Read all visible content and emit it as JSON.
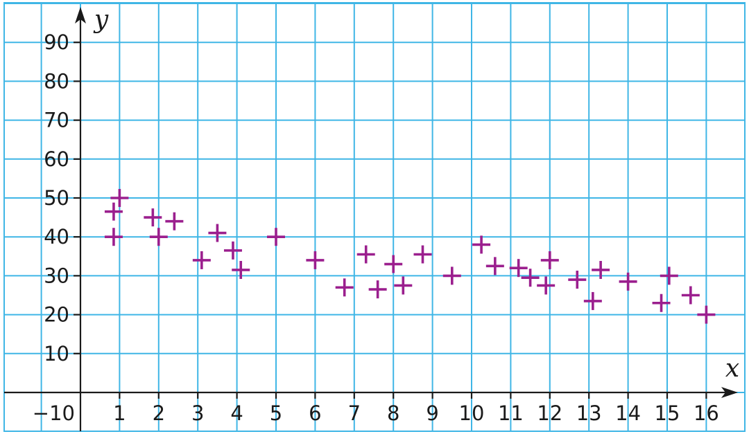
{
  "chart_data": {
    "type": "scatter",
    "xlabel": "x",
    "ylabel": "y",
    "xlim": [
      -1,
      17
    ],
    "ylim": [
      -10,
      100
    ],
    "x_ticks": [
      1,
      2,
      3,
      4,
      5,
      6,
      7,
      8,
      9,
      10,
      11,
      12,
      13,
      14,
      15,
      16
    ],
    "y_ticks": [
      10,
      20,
      30,
      40,
      50,
      60,
      70,
      80,
      90
    ],
    "x_tick_labels": [
      "1",
      "2",
      "3",
      "4",
      "5",
      "6",
      "7",
      "8",
      "9",
      "10",
      "11",
      "12",
      "13",
      "14",
      "15",
      "16"
    ],
    "y_tick_labels": [
      "10",
      "20",
      "30",
      "40",
      "50",
      "60",
      "70",
      "80",
      "90"
    ],
    "origin_label": "−10",
    "grid": true,
    "grid_color": "#3fb6e6",
    "axis_color": "#1a1a1a",
    "marker": "plus",
    "marker_color": "#9b1f8e",
    "points": [
      {
        "x": 0.85,
        "y": 46.5
      },
      {
        "x": 1.0,
        "y": 50
      },
      {
        "x": 0.85,
        "y": 40
      },
      {
        "x": 1.85,
        "y": 45
      },
      {
        "x": 2.0,
        "y": 40
      },
      {
        "x": 2.4,
        "y": 44
      },
      {
        "x": 3.1,
        "y": 34
      },
      {
        "x": 3.5,
        "y": 41
      },
      {
        "x": 3.9,
        "y": 36.5
      },
      {
        "x": 4.1,
        "y": 31.5
      },
      {
        "x": 5.0,
        "y": 40
      },
      {
        "x": 6.0,
        "y": 34
      },
      {
        "x": 6.75,
        "y": 27
      },
      {
        "x": 7.3,
        "y": 35.5
      },
      {
        "x": 7.6,
        "y": 26.5
      },
      {
        "x": 8.0,
        "y": 33
      },
      {
        "x": 8.25,
        "y": 27.5
      },
      {
        "x": 8.75,
        "y": 35.5
      },
      {
        "x": 9.5,
        "y": 30
      },
      {
        "x": 10.25,
        "y": 38
      },
      {
        "x": 10.6,
        "y": 32.5
      },
      {
        "x": 11.2,
        "y": 32
      },
      {
        "x": 11.5,
        "y": 29.5
      },
      {
        "x": 11.9,
        "y": 27.5
      },
      {
        "x": 12.0,
        "y": 34
      },
      {
        "x": 12.7,
        "y": 29
      },
      {
        "x": 13.1,
        "y": 23.5
      },
      {
        "x": 13.3,
        "y": 31.5
      },
      {
        "x": 14.0,
        "y": 28.5
      },
      {
        "x": 14.85,
        "y": 23
      },
      {
        "x": 15.05,
        "y": 30
      },
      {
        "x": 15.6,
        "y": 25
      },
      {
        "x": 16.0,
        "y": 20
      }
    ]
  }
}
